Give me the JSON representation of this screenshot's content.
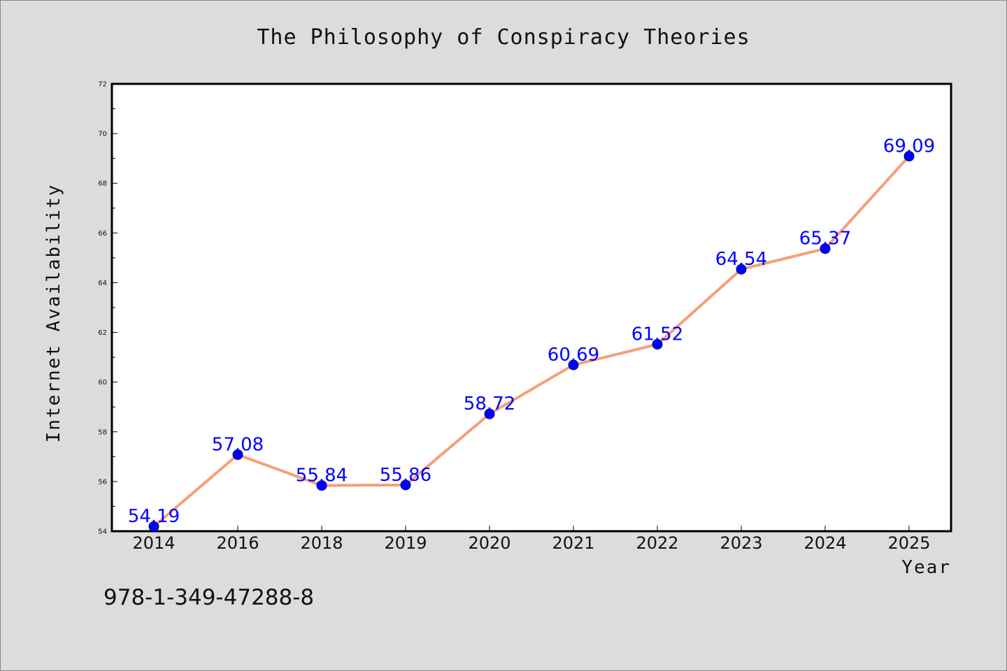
{
  "chart_data": {
    "type": "line",
    "title": "The Philosophy of Conspiracy Theories",
    "xlabel": "Year",
    "ylabel": "Internet Availability",
    "categories": [
      "2014",
      "2016",
      "2018",
      "2019",
      "2020",
      "2021",
      "2022",
      "2023",
      "2024",
      "2025"
    ],
    "series": [
      {
        "values": [
          54.19,
          57.08,
          55.84,
          55.86,
          58.72,
          60.69,
          61.52,
          64.54,
          65.37,
          69.09
        ],
        "labels": [
          "54.19",
          "57.08",
          "55.84",
          "55.86",
          "58.72",
          "60.69",
          "61.52",
          "64.54",
          "65.37",
          "69.09"
        ]
      }
    ],
    "ylim": [
      54,
      72
    ],
    "yticks": [
      "54",
      "56",
      "58",
      "60",
      "62",
      "64",
      "66",
      "68",
      "70",
      "72"
    ],
    "grid": false,
    "colors": {
      "background": "#dcdcdc",
      "plot_background": "#ffffff",
      "line": "#f4a07a",
      "marker": "#0000ff",
      "data_label": "#0000ff"
    }
  },
  "footer": {
    "isbn": "978-1-349-47288-8"
  }
}
